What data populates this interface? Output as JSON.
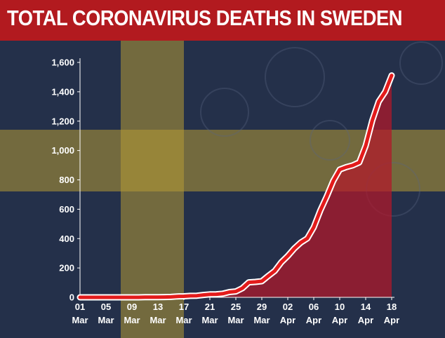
{
  "header": {
    "title": "TOTAL CORONAVIRUS DEATHS IN SWEDEN"
  },
  "colors": {
    "banner": "#b21a1f",
    "background": "#24304a",
    "flag_cross": "#b59a35",
    "line": "#e31b1b",
    "line_outline": "#ffffff",
    "area_fill": "#b3182a"
  },
  "chart_data": {
    "type": "area",
    "title": "TOTAL CORONAVIRUS DEATHS IN SWEDEN",
    "xlabel": "",
    "ylabel": "",
    "ylim": [
      0,
      1600
    ],
    "yticks": [
      0,
      200,
      400,
      600,
      800,
      1000,
      1200,
      1400,
      1600
    ],
    "ytick_labels": [
      "0",
      "200",
      "400",
      "600",
      "800",
      "1,000",
      "1,200",
      "1,400",
      "1,600"
    ],
    "xticks": [
      {
        "day": 1,
        "top": "01",
        "bottom": "Mar"
      },
      {
        "day": 5,
        "top": "05",
        "bottom": "Mar"
      },
      {
        "day": 9,
        "top": "09",
        "bottom": "Mar"
      },
      {
        "day": 13,
        "top": "13",
        "bottom": "Mar"
      },
      {
        "day": 17,
        "top": "17",
        "bottom": "Mar"
      },
      {
        "day": 21,
        "top": "21",
        "bottom": "Mar"
      },
      {
        "day": 25,
        "top": "25",
        "bottom": "Mar"
      },
      {
        "day": 29,
        "top": "29",
        "bottom": "Mar"
      },
      {
        "day": 33,
        "top": "02",
        "bottom": "Apr"
      },
      {
        "day": 37,
        "top": "06",
        "bottom": "Apr"
      },
      {
        "day": 41,
        "top": "10",
        "bottom": "Apr"
      },
      {
        "day": 45,
        "top": "14",
        "bottom": "Apr"
      },
      {
        "day": 49,
        "top": "18",
        "bottom": "Apr"
      }
    ],
    "grid": false,
    "legend": "none",
    "series": [
      {
        "x": [
          "2020-03-01",
          "2020-03-02",
          "2020-03-03",
          "2020-03-04",
          "2020-03-05",
          "2020-03-06",
          "2020-03-07",
          "2020-03-08",
          "2020-03-09",
          "2020-03-10",
          "2020-03-11",
          "2020-03-12",
          "2020-03-13",
          "2020-03-14",
          "2020-03-15",
          "2020-03-16",
          "2020-03-17",
          "2020-03-18",
          "2020-03-19",
          "2020-03-20",
          "2020-03-21",
          "2020-03-22",
          "2020-03-23",
          "2020-03-24",
          "2020-03-25",
          "2020-03-26",
          "2020-03-27",
          "2020-03-28",
          "2020-03-29",
          "2020-03-30",
          "2020-03-31",
          "2020-04-01",
          "2020-04-02",
          "2020-04-03",
          "2020-04-04",
          "2020-04-05",
          "2020-04-06",
          "2020-04-07",
          "2020-04-08",
          "2020-04-09",
          "2020-04-10",
          "2020-04-11",
          "2020-04-12",
          "2020-04-13",
          "2020-04-14",
          "2020-04-15",
          "2020-04-16",
          "2020-04-17",
          "2020-04-18"
        ],
        "values": [
          0,
          0,
          0,
          0,
          0,
          0,
          0,
          0,
          0,
          0,
          1,
          1,
          1,
          2,
          3,
          6,
          7,
          10,
          11,
          16,
          20,
          21,
          25,
          36,
          40,
          62,
          102,
          105,
          110,
          146,
          180,
          239,
          282,
          333,
          373,
          401,
          477,
          591,
          687,
          793,
          870,
          887,
          899,
          919,
          1033,
          1203,
          1333,
          1400,
          1511
        ]
      }
    ]
  }
}
